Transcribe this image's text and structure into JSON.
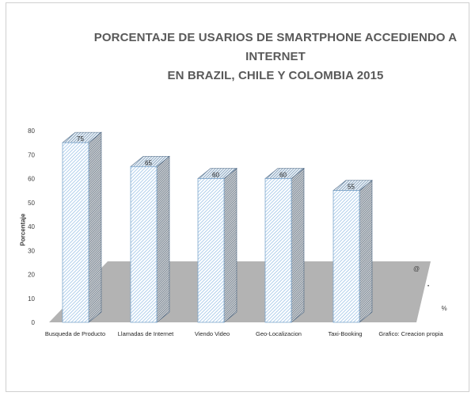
{
  "chart_data": {
    "type": "bar",
    "title_line1": "PORCENTAJE DE  USARIOS DE SMARTPHONE ACCEDIENDO A INTERNET",
    "title_line2": "EN BRAZIL, CHILE Y COLOMBIA 2015",
    "ylabel": "Porcentaje",
    "xlabel": "",
    "ylim": [
      0,
      80
    ],
    "yticks": [
      "0",
      "10",
      "20",
      "30",
      "40",
      "50",
      "60",
      "70",
      "80"
    ],
    "categories": [
      "Busqueda de Producto",
      "Llamadas de Internet",
      "Viendo Video",
      "Geo-Localizacion",
      "Taxi-Booking"
    ],
    "values": [
      75,
      65,
      60,
      60,
      55
    ],
    "data_labels": [
      "75",
      "65",
      "60",
      "60",
      "55"
    ],
    "extra_category_label": "Grafico: Creacion propia",
    "side_marks": [
      "@",
      "•",
      "%"
    ],
    "bar_color": "#9dc3e6",
    "bar_dark": "#5b7f9f",
    "floor_color": "#b3b3b3",
    "grid": false,
    "legend": "none"
  }
}
